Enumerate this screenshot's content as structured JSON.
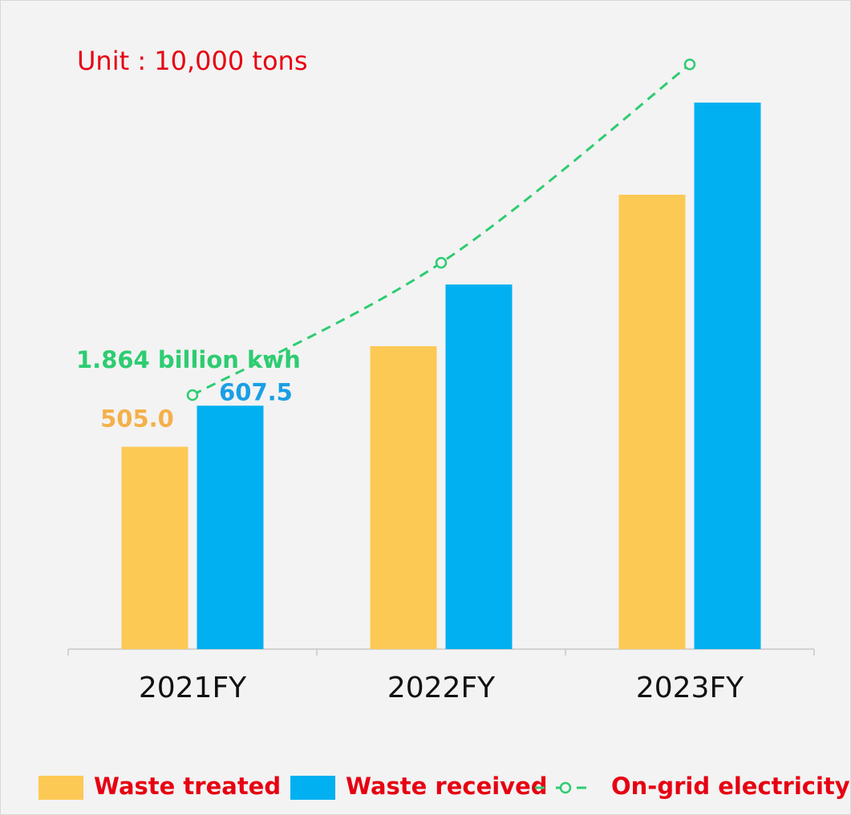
{
  "chart_data": {
    "type": "bar",
    "annotation": "Unit : 10,000 tons",
    "categories": [
      "2021FY",
      "2022FY",
      "2023FY"
    ],
    "series": [
      {
        "name": "Waste treated",
        "color": "#fdc955",
        "label_color": "#f5b04a",
        "values": [
          505.0,
          756,
          1134
        ],
        "value_labels": [
          "505.0",
          null,
          null
        ]
      },
      {
        "name": "Waste received",
        "color": "#00b0f0",
        "label_color": "#1a9fe6",
        "values": [
          607.5,
          910,
          1364
        ],
        "value_labels": [
          "607.5",
          null,
          null
        ]
      },
      {
        "name": "On-grid electricity",
        "type": "line",
        "axis": "y2",
        "color": "#2ecc71",
        "dashed": true,
        "values": [
          1.864,
          2.835,
          4.29
        ],
        "value_labels": [
          "1.864 billion kwh",
          null,
          null
        ]
      }
    ],
    "ylim": [
      0,
      1500
    ],
    "y2lim": [
      0,
      4.41
    ],
    "legend": "bottom"
  }
}
